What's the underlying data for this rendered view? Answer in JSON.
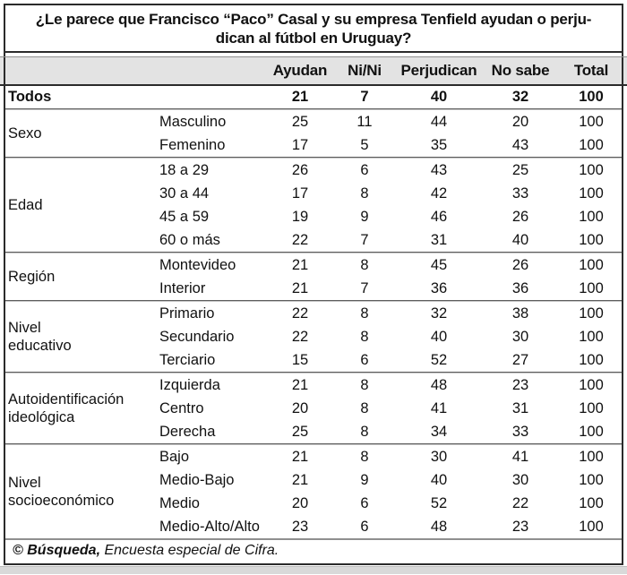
{
  "title": "¿Le parece que Francisco “Paco” Casal y su empresa Tenfield ayudan o perju-\ndican al fútbol en Uruguay?",
  "columns": [
    "Ayudan",
    "Ni/Ni",
    "Perjudican",
    "No sabe",
    "Total"
  ],
  "total_row": {
    "label": "Todos",
    "values": [
      21,
      7,
      40,
      32,
      100
    ]
  },
  "groups": [
    {
      "label": "Sexo",
      "rows": [
        {
          "label": "Masculino",
          "values": [
            25,
            11,
            44,
            20,
            100
          ]
        },
        {
          "label": "Femenino",
          "values": [
            17,
            5,
            35,
            43,
            100
          ]
        }
      ]
    },
    {
      "label": "Edad",
      "rows": [
        {
          "label": "18 a 29",
          "values": [
            26,
            6,
            43,
            25,
            100
          ]
        },
        {
          "label": "30 a 44",
          "values": [
            17,
            8,
            42,
            33,
            100
          ]
        },
        {
          "label": "45 a 59",
          "values": [
            19,
            9,
            46,
            26,
            100
          ]
        },
        {
          "label": "60 o más",
          "values": [
            22,
            7,
            31,
            40,
            100
          ]
        }
      ]
    },
    {
      "label": "Región",
      "rows": [
        {
          "label": "Montevideo",
          "values": [
            21,
            8,
            45,
            26,
            100
          ]
        },
        {
          "label": "Interior",
          "values": [
            21,
            7,
            36,
            36,
            100
          ]
        }
      ]
    },
    {
      "label": "Nivel\neducativo",
      "rows": [
        {
          "label": "Primario",
          "values": [
            22,
            8,
            32,
            38,
            100
          ]
        },
        {
          "label": "Secundario",
          "values": [
            22,
            8,
            40,
            30,
            100
          ]
        },
        {
          "label": "Terciario",
          "values": [
            15,
            6,
            52,
            27,
            100
          ]
        }
      ]
    },
    {
      "label": "Autoidentificación\nideológica",
      "rows": [
        {
          "label": "Izquierda",
          "values": [
            21,
            8,
            48,
            23,
            100
          ]
        },
        {
          "label": "Centro",
          "values": [
            20,
            8,
            41,
            31,
            100
          ]
        },
        {
          "label": "Derecha",
          "values": [
            25,
            8,
            34,
            33,
            100
          ]
        }
      ]
    },
    {
      "label": "Nivel\nsocioeconómico",
      "rows": [
        {
          "label": "Bajo",
          "values": [
            21,
            8,
            30,
            41,
            100
          ]
        },
        {
          "label": "Medio-Bajo",
          "values": [
            21,
            9,
            40,
            30,
            100
          ]
        },
        {
          "label": "Medio",
          "values": [
            20,
            6,
            52,
            22,
            100
          ]
        },
        {
          "label": "Medio-Alto/Alto",
          "values": [
            23,
            6,
            48,
            23,
            100
          ]
        }
      ]
    }
  ],
  "footer": {
    "bold": "© Búsqueda,",
    "rest": " Encuesta especial de Cifra."
  },
  "colors": {
    "header_bg": "#e3e3e3",
    "border_dark": "#2b2b2b",
    "separator_dark": "#5d5d5d",
    "separator_light": "#c6c6c6",
    "bottom_strip": "#d9d9d9"
  }
}
